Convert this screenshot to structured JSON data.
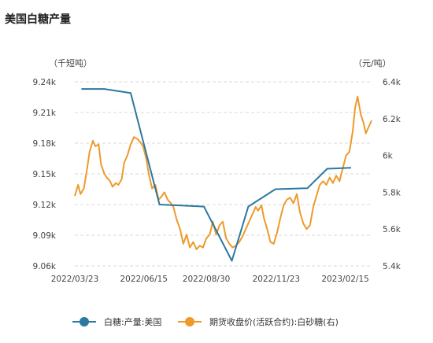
{
  "title": "美国白糖产量",
  "chart_data": {
    "type": "line",
    "title": "美国白糖产量",
    "left_unit": "（千短吨）",
    "right_unit": "（元/吨）",
    "left_axis": {
      "ticks": [
        9.06,
        9.09,
        9.12,
        9.15,
        9.18,
        9.21,
        9.24
      ],
      "labels": [
        "9.06k",
        "9.09k",
        "9.12k",
        "9.15k",
        "9.18k",
        "9.21k",
        "9.24k"
      ],
      "min": 9.06,
      "max": 9.24
    },
    "right_axis": {
      "ticks": [
        5.4,
        5.6,
        5.8,
        6.0,
        6.2,
        6.4
      ],
      "labels": [
        "5.4k",
        "5.6k",
        "5.8k",
        "6k",
        "6.2k",
        "6.4k"
      ],
      "min": 5.4,
      "max": 6.4
    },
    "x_range": [
      "2022-03-23",
      "2023-03-19"
    ],
    "x_ticks": [
      "2022/03/23",
      "2022/06/15",
      "2022/08/30",
      "2022/11/23",
      "2023/02/15"
    ],
    "x_tick_dates": [
      "2022-03-23",
      "2022-06-15",
      "2022-08-30",
      "2022-11-23",
      "2023-02-15"
    ],
    "grid": true,
    "legend_position": "bottom",
    "colors": {
      "series1": "#2c78a0",
      "series2": "#ee9a2b",
      "grid": "#d9d9d9"
    },
    "series": [
      {
        "name": "白糖:产量:美国",
        "axis": "left",
        "color": "#2c78a0",
        "points": [
          [
            "2022-03-31",
            9.233
          ],
          [
            "2022-04-28",
            9.233
          ],
          [
            "2022-05-30",
            9.229
          ],
          [
            "2022-07-04",
            9.12
          ],
          [
            "2022-08-27",
            9.118
          ],
          [
            "2022-09-30",
            9.065
          ],
          [
            "2022-10-20",
            9.118
          ],
          [
            "2022-11-22",
            9.135
          ],
          [
            "2022-12-31",
            9.136
          ],
          [
            "2023-01-24",
            9.155
          ],
          [
            "2023-02-22",
            9.156
          ]
        ]
      },
      {
        "name": "期货收盘价(活跃合约):白砂糖(右)",
        "axis": "right",
        "color": "#ee9a2b",
        "points": [
          [
            "2022-03-23",
            5.78
          ],
          [
            "2022-03-27",
            5.84
          ],
          [
            "2022-03-30",
            5.79
          ],
          [
            "2022-04-03",
            5.82
          ],
          [
            "2022-04-07",
            5.93
          ],
          [
            "2022-04-10",
            6.02
          ],
          [
            "2022-04-14",
            6.08
          ],
          [
            "2022-04-17",
            6.05
          ],
          [
            "2022-04-21",
            6.06
          ],
          [
            "2022-04-24",
            5.95
          ],
          [
            "2022-04-28",
            5.9
          ],
          [
            "2022-05-01",
            5.88
          ],
          [
            "2022-05-05",
            5.86
          ],
          [
            "2022-05-08",
            5.83
          ],
          [
            "2022-05-12",
            5.85
          ],
          [
            "2022-05-15",
            5.84
          ],
          [
            "2022-05-19",
            5.87
          ],
          [
            "2022-05-22",
            5.96
          ],
          [
            "2022-05-26",
            6.0
          ],
          [
            "2022-05-30",
            6.06
          ],
          [
            "2022-06-03",
            6.1
          ],
          [
            "2022-06-07",
            6.09
          ],
          [
            "2022-06-11",
            6.07
          ],
          [
            "2022-06-14",
            6.05
          ],
          [
            "2022-06-18",
            5.98
          ],
          [
            "2022-06-21",
            5.9
          ],
          [
            "2022-06-25",
            5.82
          ],
          [
            "2022-06-29",
            5.84
          ],
          [
            "2022-07-03",
            5.76
          ],
          [
            "2022-07-07",
            5.78
          ],
          [
            "2022-07-10",
            5.8
          ],
          [
            "2022-07-14",
            5.76
          ],
          [
            "2022-07-18",
            5.74
          ],
          [
            "2022-07-21",
            5.72
          ],
          [
            "2022-07-25",
            5.65
          ],
          [
            "2022-07-29",
            5.6
          ],
          [
            "2022-08-02",
            5.52
          ],
          [
            "2022-08-06",
            5.57
          ],
          [
            "2022-08-10",
            5.5
          ],
          [
            "2022-08-14",
            5.53
          ],
          [
            "2022-08-18",
            5.49
          ],
          [
            "2022-08-22",
            5.51
          ],
          [
            "2022-08-26",
            5.5
          ],
          [
            "2022-08-30",
            5.55
          ],
          [
            "2022-09-03",
            5.57
          ],
          [
            "2022-09-07",
            5.64
          ],
          [
            "2022-09-11",
            5.57
          ],
          [
            "2022-09-15",
            5.62
          ],
          [
            "2022-09-19",
            5.64
          ],
          [
            "2022-09-23",
            5.55
          ],
          [
            "2022-09-27",
            5.52
          ],
          [
            "2022-10-01",
            5.5
          ],
          [
            "2022-10-05",
            5.51
          ],
          [
            "2022-10-09",
            5.53
          ],
          [
            "2022-10-13",
            5.56
          ],
          [
            "2022-10-17",
            5.6
          ],
          [
            "2022-10-21",
            5.64
          ],
          [
            "2022-10-25",
            5.68
          ],
          [
            "2022-10-29",
            5.72
          ],
          [
            "2022-11-01",
            5.7
          ],
          [
            "2022-11-05",
            5.73
          ],
          [
            "2022-11-08",
            5.66
          ],
          [
            "2022-11-12",
            5.6
          ],
          [
            "2022-11-16",
            5.53
          ],
          [
            "2022-11-20",
            5.52
          ],
          [
            "2022-11-24",
            5.58
          ],
          [
            "2022-11-28",
            5.66
          ],
          [
            "2022-12-02",
            5.73
          ],
          [
            "2022-12-06",
            5.76
          ],
          [
            "2022-12-10",
            5.77
          ],
          [
            "2022-12-14",
            5.74
          ],
          [
            "2022-12-18",
            5.79
          ],
          [
            "2022-12-22",
            5.69
          ],
          [
            "2022-12-26",
            5.63
          ],
          [
            "2022-12-30",
            5.6
          ],
          [
            "2023-01-03",
            5.62
          ],
          [
            "2023-01-07",
            5.72
          ],
          [
            "2023-01-11",
            5.78
          ],
          [
            "2023-01-15",
            5.84
          ],
          [
            "2023-01-19",
            5.86
          ],
          [
            "2023-01-23",
            5.84
          ],
          [
            "2023-01-27",
            5.88
          ],
          [
            "2023-01-31",
            5.85
          ],
          [
            "2023-02-04",
            5.89
          ],
          [
            "2023-02-08",
            5.86
          ],
          [
            "2023-02-12",
            5.93
          ],
          [
            "2023-02-16",
            6.0
          ],
          [
            "2023-02-20",
            6.02
          ],
          [
            "2023-02-24",
            6.13
          ],
          [
            "2023-02-27",
            6.26
          ],
          [
            "2023-03-02",
            6.32
          ],
          [
            "2023-03-06",
            6.22
          ],
          [
            "2023-03-09",
            6.18
          ],
          [
            "2023-03-12",
            6.12
          ],
          [
            "2023-03-15",
            6.15
          ],
          [
            "2023-03-19",
            6.19
          ]
        ]
      }
    ]
  }
}
